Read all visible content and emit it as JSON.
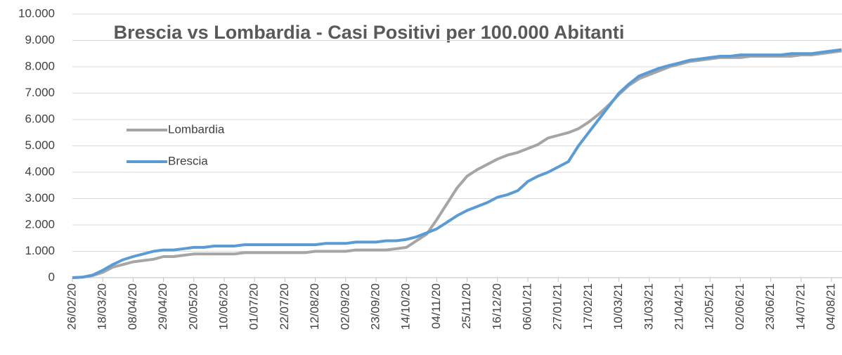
{
  "chart_data": {
    "type": "line",
    "title": "Brescia vs Lombardia - Casi Positivi per 100.000 Abitanti",
    "categories": [
      "26/02/20",
      null,
      null,
      "18/03/20",
      null,
      null,
      "08/04/20",
      null,
      null,
      "29/04/20",
      null,
      null,
      "20/05/20",
      null,
      null,
      "10/06/20",
      null,
      null,
      "01/07/20",
      null,
      null,
      "22/07/20",
      null,
      null,
      "12/08/20",
      null,
      null,
      "02/09/20",
      null,
      null,
      "23/09/20",
      null,
      null,
      "14/10/20",
      null,
      null,
      "04/11/20",
      null,
      null,
      "25/11/20",
      null,
      null,
      "16/12/20",
      null,
      null,
      "06/01/21",
      null,
      null,
      "27/01/21",
      null,
      null,
      "17/02/21",
      null,
      null,
      "10/03/21",
      null,
      null,
      "31/03/21",
      null,
      null,
      "21/04/21",
      null,
      null,
      "12/05/21",
      null,
      null,
      "02/06/21",
      null,
      null,
      "23/06/21",
      null,
      null,
      "14/07/21",
      null,
      null,
      "04/08/21",
      null
    ],
    "series": [
      {
        "name": "Lombardia",
        "color": "#a5a5a5",
        "values": [
          0,
          20,
          80,
          200,
          400,
          500,
          600,
          650,
          700,
          800,
          800,
          850,
          900,
          900,
          900,
          900,
          900,
          950,
          950,
          950,
          950,
          950,
          950,
          950,
          1000,
          1000,
          1000,
          1000,
          1050,
          1050,
          1050,
          1050,
          1100,
          1150,
          1400,
          1650,
          2200,
          2800,
          3400,
          3850,
          4100,
          4300,
          4500,
          4650,
          4750,
          4900,
          5050,
          5300,
          5400,
          5500,
          5650,
          5900,
          6200,
          6550,
          6950,
          7300,
          7550,
          7700,
          7850,
          8000,
          8100,
          8200,
          8250,
          8300,
          8350,
          8350,
          8350,
          8400,
          8400,
          8400,
          8400,
          8400,
          8450,
          8450,
          8500,
          8550,
          8600
        ]
      },
      {
        "name": "Brescia",
        "color": "#5b9bd5",
        "values": [
          0,
          20,
          100,
          280,
          500,
          680,
          800,
          900,
          1000,
          1050,
          1050,
          1100,
          1150,
          1150,
          1200,
          1200,
          1200,
          1250,
          1250,
          1250,
          1250,
          1250,
          1250,
          1250,
          1250,
          1300,
          1300,
          1300,
          1350,
          1350,
          1350,
          1400,
          1400,
          1450,
          1550,
          1700,
          1850,
          2100,
          2350,
          2550,
          2700,
          2850,
          3050,
          3150,
          3300,
          3650,
          3850,
          4000,
          4200,
          4400,
          5000,
          5500,
          6000,
          6500,
          7000,
          7350,
          7650,
          7800,
          7950,
          8050,
          8150,
          8250,
          8300,
          8350,
          8400,
          8400,
          8450,
          8450,
          8450,
          8450,
          8450,
          8500,
          8500,
          8500,
          8550,
          8600,
          8650
        ]
      }
    ],
    "ylim": [
      0,
      10000
    ],
    "yticks": [
      0,
      {
        "value": 1000,
        "label": "1.000"
      },
      {
        "value": 2000,
        "label": "2.000"
      },
      {
        "value": 3000,
        "label": "3.000"
      },
      {
        "value": 4000,
        "label": "4.000"
      },
      {
        "value": 5000,
        "label": "5.000"
      },
      {
        "value": 6000,
        "label": "6.000"
      },
      {
        "value": 7000,
        "label": "7.000"
      },
      {
        "value": 8000,
        "label": "8.000"
      },
      {
        "value": 9000,
        "label": "9.000"
      },
      {
        "value": 10000,
        "label": "10.000"
      }
    ],
    "grid": true
  }
}
